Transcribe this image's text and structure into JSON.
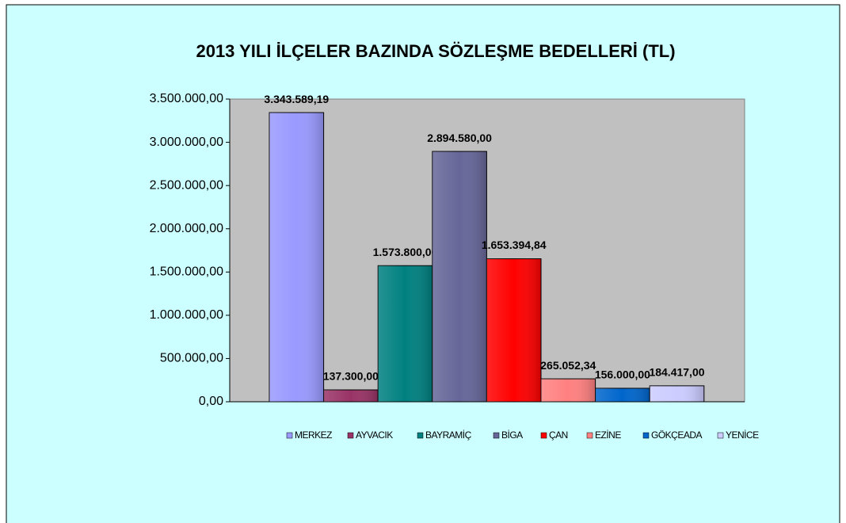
{
  "chart_data": {
    "type": "bar",
    "title": "2013 YILI İLÇELER BAZINDA SÖZLEŞME BEDELLERİ (TL)",
    "categories": [
      "MERKEZ",
      "AYVACIK",
      "BAYRAMİÇ",
      "BİGA",
      "ÇAN",
      "EZİNE",
      "GÖKÇEADA",
      "YENİCE"
    ],
    "values": [
      3343589.19,
      137300,
      1573800,
      2894580,
      1653394.84,
      265052.34,
      156000,
      184417
    ],
    "value_labels": [
      "3.343.589,19",
      "137.300,00",
      "1.573.800,00",
      "2.894.580,00",
      "1.653.394,84",
      "265.052,34",
      "156.000,00",
      "184.417,00"
    ],
    "colors": [
      "#9999ff",
      "#993366",
      "#008080",
      "#666699",
      "#ff0000",
      "#ff8080",
      "#0066cc",
      "#ccccff"
    ],
    "ylim": [
      0,
      3500000
    ],
    "yticks": [
      {
        "value": 0,
        "label": "0,00"
      },
      {
        "value": 500000,
        "label": "500.000,00"
      },
      {
        "value": 1000000,
        "label": "1.000.000,00"
      },
      {
        "value": 1500000,
        "label": "1.500.000,00"
      },
      {
        "value": 2000000,
        "label": "2.000.000,00"
      },
      {
        "value": 2500000,
        "label": "2.500.000,00"
      },
      {
        "value": 3000000,
        "label": "3.000.000,00"
      },
      {
        "value": 3500000,
        "label": "3.500.000,00"
      }
    ],
    "legend": "bottom"
  }
}
